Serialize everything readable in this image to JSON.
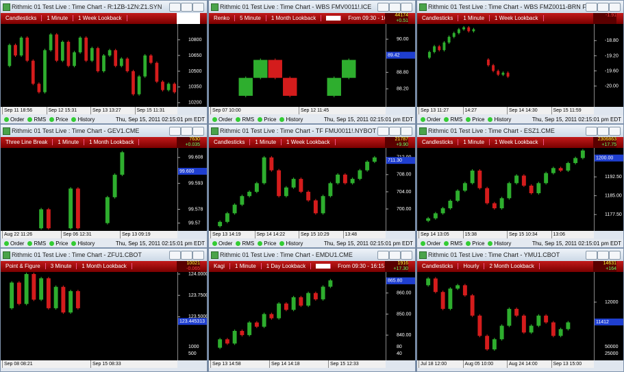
{
  "status_items": [
    "Order",
    "RMS",
    "Price",
    "History"
  ],
  "timestamp": "Thu, Sep 15, 2011 02:15:01 pm EDT",
  "windows": [
    {
      "title": "Rithmic 01 Test Live : Time Chart - R:1ZB-1ZN:Z1.SYN",
      "toolbar": [
        "Candlesticks",
        "1 Minute",
        "1 Week Lookback"
      ],
      "ylim": [
        10160,
        10950
      ],
      "yticks": [
        10800,
        10650,
        10500,
        10350,
        10200
      ],
      "times": [
        "Sep 11 18:56",
        "Sep 12 15:31",
        "Sep 13 13:27",
        "Sep 15 11:31"
      ],
      "trace": [
        10550,
        10750,
        10650,
        10820,
        10600,
        10380,
        10300,
        10700,
        10850,
        10600,
        10780,
        10550,
        10680,
        10820,
        10600,
        10720,
        10500,
        10650,
        10700,
        10550,
        10620,
        10500,
        10280,
        10450,
        10650,
        10580,
        10400,
        10320,
        10380,
        10300
      ]
    },
    {
      "title": "Rithmic 01 Test Live : Time Chart - WBS FMV0011!.ICE",
      "toolbar": [
        "Renko",
        "5 Minute",
        "1 Month Lookback"
      ],
      "session": "From 09:30 - 16:00",
      "quote": [
        "44174",
        "+0.51"
      ],
      "ylim": [
        87.55,
        90.55
      ],
      "yticks": [
        {
          "value": 90,
          "label": "90.00"
        },
        {
          "value": 88.8,
          "label": "88.80"
        },
        {
          "value": 88.2,
          "label": "88.20"
        }
      ],
      "last": {
        "value": 89.42,
        "label": "89.42"
      },
      "times": [
        "Sep 07 10:00",
        "Sep 12 11:45"
      ],
      "trace": [
        null,
        87.95,
        88.6,
        89.25,
        88.6,
        87.95,
        null,
        87.95,
        88.6,
        89.25,
        null,
        null
      ]
    },
    {
      "title": "Rithmic 01 Test Live : Time Chart - WBS FMZ0011-BRN FMZ0011.I...",
      "toolbar": [
        "Candlesticks",
        "1 Minute",
        "1 Week Lookback"
      ],
      "quote": [
        "-1.91"
      ],
      "ylim": [
        -20.55,
        -18.36
      ],
      "yticks": [
        {
          "value": -18.8,
          "label": "-18.80"
        },
        {
          "value": -19.2,
          "label": "-19.20"
        },
        {
          "value": -19.6,
          "label": "-19.60"
        },
        {
          "value": -20,
          "label": "-20.00"
        }
      ],
      "times": [
        "Sep 13 11:27",
        "14:27",
        "Sep 14 14:30",
        "Sep 15 11:59"
      ],
      "trace": [
        null,
        -19.25,
        -19.1,
        -18.95,
        -19.05,
        -18.85,
        -18.7,
        -18.6,
        -18.5,
        -18.45,
        -18.55,
        -18.5,
        null,
        -19.3,
        -19.45,
        -19.6,
        -19.7,
        -19.65,
        -19.75,
        null,
        null,
        null,
        null,
        null,
        null,
        null,
        null,
        null,
        null,
        null,
        null,
        null,
        null,
        null,
        null,
        null
      ]
    },
    {
      "title": "Rithmic 01 Test Live : Time Chart - GEV1.CME",
      "toolbar": [
        "Three Line Break",
        "1 Minute",
        "1 Month Lookback"
      ],
      "quote": [
        "7630",
        "+0.035"
      ],
      "ylim": [
        99.5655,
        99.6135
      ],
      "yticks": [
        99.608,
        99.593,
        99.578,
        99.57
      ],
      "last": {
        "value": 99.6,
        "label": "99.600"
      },
      "times": [
        "Aug 22 11:26",
        "Sep 06 12:31",
        "Sep 13 09:19"
      ],
      "trace": [
        null,
        null,
        null,
        null,
        99.567,
        99.578,
        99.567,
        null,
        99.567,
        99.59,
        99.567,
        null,
        null,
        99.57,
        99.585,
        99.598,
        99.611,
        null,
        null,
        null,
        null,
        null,
        null,
        null
      ]
    },
    {
      "title": "Rithmic 01 Test Live : Time Chart - TF FMU0011!.NYBOT",
      "toolbar": [
        "Candlesticks",
        "1 Minute",
        "1 Week Lookback"
      ],
      "quote": [
        "21787",
        "+9.90"
      ],
      "ylim": [
        694.9,
        714.2
      ],
      "yticks": [
        {
          "value": 712,
          "label": "712.00"
        },
        {
          "value": 708,
          "label": "708.00"
        },
        {
          "value": 704,
          "label": "704.00"
        },
        {
          "value": 700,
          "label": "700.00"
        }
      ],
      "last": {
        "value": 711.3,
        "label": "711.30"
      },
      "times": [
        "Sep 13 14:19",
        "Sep 14 14:22",
        "Sep 15 10:29",
        "13:48"
      ],
      "trace": [
        696,
        697,
        699,
        701,
        703,
        704,
        706,
        712,
        709,
        703,
        705,
        707,
        704,
        702,
        699,
        703,
        706,
        708,
        706,
        707,
        709,
        711,
        712,
        null
      ]
    },
    {
      "title": "Rithmic 01 Test Live : Time Chart - ESZ1.CME",
      "toolbar": [
        "Candlesticks",
        "1 Minute",
        "1 Week Lookback"
      ],
      "quote": [
        "2306863",
        "+17.75"
      ],
      "ylim": [
        1171,
        1204
      ],
      "yticks": [
        {
          "value": 1192.5,
          "label": "1192.50"
        },
        {
          "value": 1185,
          "label": "1185.00"
        },
        {
          "value": 1177.5,
          "label": "1177.50"
        }
      ],
      "last": {
        "value": 1200,
        "label": "1200.00"
      },
      "times": [
        "Sep 14 13:05",
        "15:38",
        "Sep 15 10:34",
        "13:06"
      ],
      "trace": [
        1175,
        1176,
        1178,
        1180,
        1183,
        1187,
        1190,
        1195,
        1188,
        1182,
        1180,
        1184,
        1190,
        1193,
        1189,
        1186,
        1190,
        1194,
        1196,
        1195,
        1198,
        1200,
        1203,
        null
      ]
    },
    {
      "title": "Rithmic 01 Test Live : Time Chart - ZFU1.CBOT",
      "toolbar": [
        "Point & Figure",
        "3 Minute",
        "1 Month Lookback"
      ],
      "quote": [
        "10021",
        "-0.065"
      ],
      "ylim": [
        122.99,
        124.024
      ],
      "yticks": [
        {
          "value": 124,
          "label": "124.000000"
        },
        {
          "value": 123.75,
          "label": "123.750000"
        },
        {
          "value": 123.5,
          "label": "123.500000"
        }
      ],
      "last": {
        "value": 123.445313,
        "label": "123.445313"
      },
      "volume_labels": [
        "1000",
        "500"
      ],
      "times": [
        "Sep 08 08:21",
        "Sep 15 08:33"
      ],
      "trace": [
        123.6,
        123.9,
        123.65,
        124.0,
        123.7,
        123.95,
        123.6,
        123.85,
        123.55,
        123.8,
        123.6,
        null,
        null,
        null,
        null,
        null,
        null,
        null,
        null,
        null,
        null,
        null,
        null,
        null
      ]
    },
    {
      "title": "Rithmic 01 Test Live : Time Chart - EMDU1.CME",
      "toolbar": [
        "Kagi",
        "1 Minute",
        "1 Day Lookback"
      ],
      "session": "From 09:30 - 16:15",
      "quote": [
        "1916",
        "+17.30"
      ],
      "ylim": [
        828,
        870
      ],
      "yticks": [
        {
          "value": 860,
          "label": "860.00"
        },
        {
          "value": 850,
          "label": "850.00"
        },
        {
          "value": 840,
          "label": "840.00"
        }
      ],
      "last": {
        "value": 865.8,
        "label": "865.80"
      },
      "volume_labels": [
        "80",
        "40"
      ],
      "times": [
        "Sep 13 14:58",
        "Sep 14 14:18",
        "Sep 15 12:33"
      ],
      "trace": [
        834,
        838,
        836,
        842,
        840,
        846,
        844,
        850,
        848,
        855,
        852,
        858,
        854,
        860,
        857,
        863,
        866,
        null,
        null,
        null,
        null,
        null,
        null,
        null
      ]
    },
    {
      "title": "Rithmic 01 Test Live : Time Chart - YMU1.CBOT",
      "toolbar": [
        "Candlesticks",
        "Hourly",
        "2 Month Lookback"
      ],
      "quote": [
        "14631",
        "+164"
      ],
      "ylim": [
        10275,
        12893
      ],
      "yticks": [
        12000
      ],
      "last": {
        "value": 11412,
        "label": "11412"
      },
      "volume_labels": [
        "50000",
        "25000"
      ],
      "times": [
        "Jul 18 12:00",
        "Aug 05 10:00",
        "Aug 24 14:00",
        "Sep 13 15:00"
      ],
      "trace": [
        12500,
        12700,
        12300,
        11800,
        12400,
        12500,
        12200,
        11600,
        11000,
        10600,
        10900,
        11300,
        11800,
        11600,
        11100,
        11300,
        11600,
        11400,
        11000,
        11200,
        11400,
        null,
        null,
        null
      ]
    }
  ]
}
